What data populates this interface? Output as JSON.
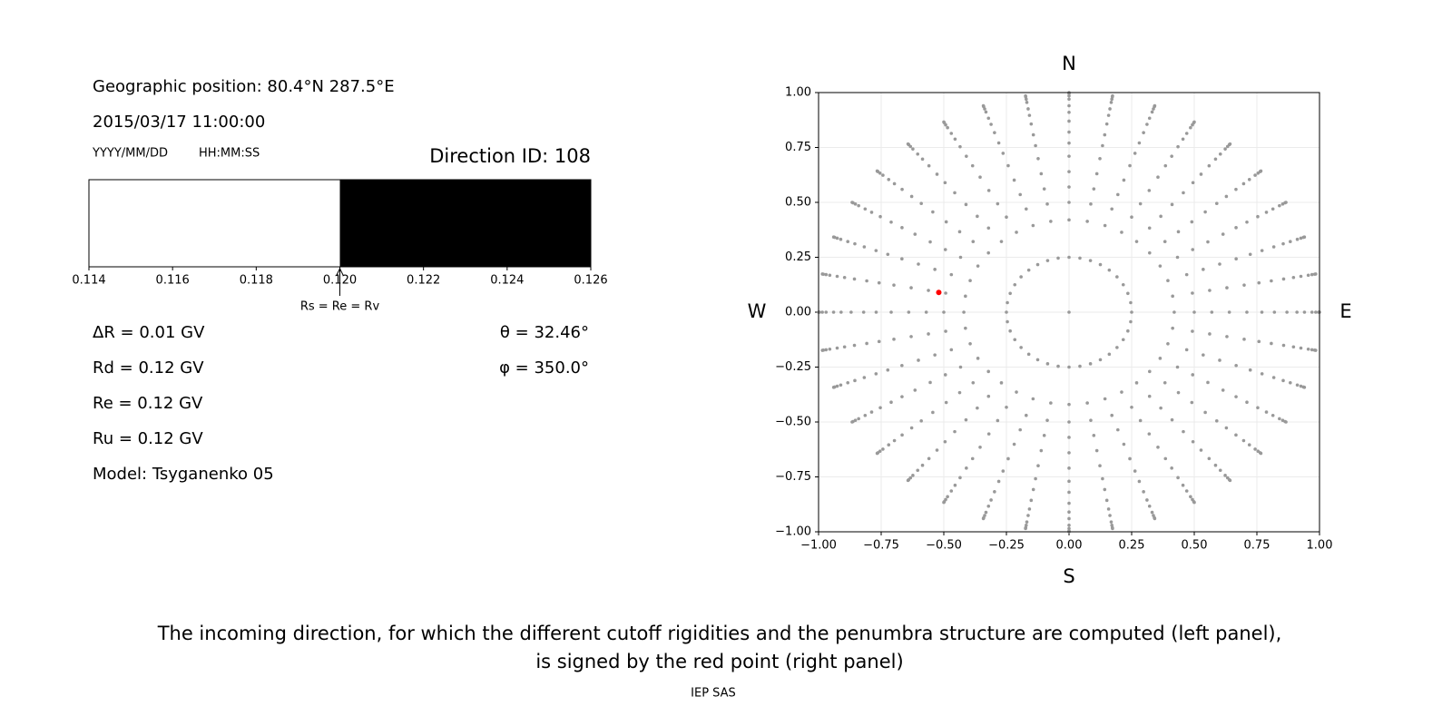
{
  "info": {
    "position": "Geographic position: 80.4°N 287.5°E",
    "datetime": "2015/03/17 11:00:00",
    "date_format": "YYYY/MM/DD",
    "time_format": "HH:MM:SS",
    "direction": "Direction ID: 108",
    "left_lines": [
      "ΔR = 0.01 GV",
      "Rd = 0.12 GV",
      "Re = 0.12 GV",
      "Ru = 0.12 GV",
      "Model: Tsyganenko 05"
    ],
    "right_lines": [
      "θ = 32.46°",
      "φ = 350.0°"
    ]
  },
  "chart_data": [
    {
      "type": "penumbra",
      "xlim": [
        0.114,
        0.126
      ],
      "xticks": [
        0.114,
        0.116,
        0.118,
        {
          "value": 0.12,
          "label": "0.120"
        },
        0.122,
        0.124,
        0.126
      ],
      "segments": [
        {
          "start": 0.114,
          "end": 0.12,
          "color": "#ffffff"
        },
        {
          "start": 0.12,
          "end": 0.126,
          "color": "#000000"
        }
      ],
      "annotation": "Rs = Re = Rv"
    },
    {
      "type": "scatter",
      "xlim": [
        -1,
        1
      ],
      "ylim": [
        -1,
        1
      ],
      "xticks": [
        {
          "value": -1,
          "label": "−1.00"
        },
        {
          "value": -0.75,
          "label": "−0.75"
        },
        {
          "value": -0.5,
          "label": "−0.50"
        },
        {
          "value": -0.25,
          "label": "−0.25"
        },
        {
          "value": 0,
          "label": "0.00"
        },
        {
          "value": 0.25,
          "label": "0.25"
        },
        {
          "value": 0.5,
          "label": "0.50"
        },
        {
          "value": 0.75,
          "label": "0.75"
        },
        {
          "value": 1,
          "label": "1.00"
        }
      ],
      "yticks": [
        {
          "value": -1,
          "label": "−1.00"
        },
        {
          "value": -0.75,
          "label": "−0.75"
        },
        {
          "value": -0.5,
          "label": "−0.50"
        },
        {
          "value": -0.25,
          "label": "−0.25"
        },
        {
          "value": 0,
          "label": "0.00"
        },
        {
          "value": 0.25,
          "label": "0.25"
        },
        {
          "value": 0.5,
          "label": "0.50"
        },
        {
          "value": 0.75,
          "label": "0.75"
        },
        {
          "value": 1,
          "label": "1.00"
        }
      ],
      "grid": true,
      "compass": {
        "north": "N",
        "south": "S",
        "east": "E",
        "west": "W"
      },
      "color": "#999999",
      "azimuths": [
        0,
        10,
        20,
        30,
        40,
        50,
        60,
        70,
        80,
        90,
        100,
        110,
        120,
        130,
        140,
        150,
        160,
        170,
        180,
        190,
        200,
        210,
        220,
        230,
        240,
        250,
        260,
        270,
        280,
        290,
        300,
        310,
        320,
        330,
        340,
        350
      ],
      "radii": [
        0.25,
        0.42,
        0.5,
        0.57,
        0.64,
        0.71,
        0.77,
        0.82,
        0.87,
        0.91,
        0.94,
        0.97,
        0.985,
        0.996,
        1.0
      ],
      "center": [
        0,
        0
      ],
      "highlight": {
        "x": -0.52,
        "y": 0.09,
        "color": "#ff0000"
      }
    }
  ],
  "caption": [
    "The incoming direction, for which the different cutoff rigidities and the penumbra structure are computed (left panel),",
    "is signed by the red point (right panel)"
  ],
  "footer": "IEP SAS"
}
